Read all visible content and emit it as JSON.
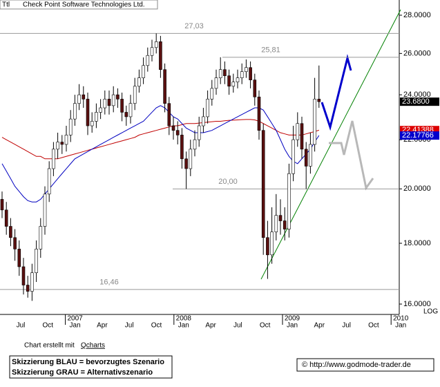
{
  "chart_data": {
    "type": "candlestick",
    "symbol": "Ttl",
    "title": "Check Point Software Technologies Ltd.",
    "log_scale": true,
    "scale_label": "LOG",
    "ylim": [
      16,
      28
    ],
    "yticks": [
      {
        "value": 16,
        "label": "16.0000"
      },
      {
        "value": 18,
        "label": "18.0000"
      },
      {
        "value": 20,
        "label": "20.0000"
      },
      {
        "value": 22,
        "label": "22.0000"
      },
      {
        "value": 24,
        "label": "24.0000"
      },
      {
        "value": 26,
        "label": "26.0000"
      },
      {
        "value": 28,
        "label": "28.0000"
      }
    ],
    "months": [
      "Jul",
      "Oct",
      "Jan",
      "Apr",
      "Jul",
      "Oct",
      "Jan",
      "Apr",
      "Jul",
      "Oct",
      "Jan",
      "Apr",
      "Jul",
      "Oct",
      "Jan"
    ],
    "years": [
      "2007",
      "2008",
      "2009",
      "2010"
    ],
    "up_color": "#ffffff",
    "down_color": "#5a1010",
    "ohlc": [
      [
        19.6,
        19.9,
        18.9,
        19.2
      ],
      [
        19.2,
        19.5,
        18.3,
        18.6
      ],
      [
        18.6,
        18.9,
        17.9,
        18.2
      ],
      [
        18.2,
        18.5,
        17.4,
        17.8
      ],
      [
        17.8,
        18.1,
        16.9,
        17.2
      ],
      [
        17.2,
        17.5,
        16.3,
        16.6
      ],
      [
        16.6,
        16.9,
        16.2,
        16.4
      ],
      [
        16.4,
        17.3,
        16.1,
        17.0
      ],
      [
        17.0,
        18.1,
        16.7,
        17.8
      ],
      [
        17.8,
        18.9,
        17.5,
        18.6
      ],
      [
        18.6,
        20.1,
        18.3,
        19.8
      ],
      [
        19.8,
        21.1,
        19.5,
        20.8
      ],
      [
        20.8,
        21.9,
        20.5,
        21.6
      ],
      [
        21.6,
        22.3,
        21.2,
        21.9
      ],
      [
        21.9,
        22.2,
        21.4,
        21.8
      ],
      [
        21.8,
        22.6,
        21.5,
        22.2
      ],
      [
        22.2,
        23.3,
        21.9,
        22.9
      ],
      [
        22.9,
        24.0,
        22.6,
        23.6
      ],
      [
        23.6,
        24.5,
        23.3,
        24.0
      ],
      [
        24.0,
        24.4,
        23.4,
        23.8
      ],
      [
        23.8,
        24.1,
        22.2,
        22.6
      ],
      [
        22.6,
        23.2,
        22.3,
        22.8
      ],
      [
        22.8,
        23.6,
        22.5,
        23.2
      ],
      [
        23.2,
        23.8,
        22.9,
        23.4
      ],
      [
        23.4,
        24.2,
        23.1,
        23.8
      ],
      [
        23.8,
        24.2,
        23.1,
        23.5
      ],
      [
        23.5,
        24.4,
        23.2,
        24.0
      ],
      [
        24.0,
        24.3,
        23.4,
        23.8
      ],
      [
        23.8,
        24.1,
        22.8,
        23.2
      ],
      [
        23.2,
        23.5,
        22.6,
        23.0
      ],
      [
        23.0,
        24.0,
        22.7,
        23.6
      ],
      [
        23.6,
        24.8,
        23.3,
        24.4
      ],
      [
        24.4,
        25.2,
        24.1,
        24.8
      ],
      [
        24.8,
        25.8,
        24.5,
        25.4
      ],
      [
        25.4,
        26.3,
        25.1,
        25.9
      ],
      [
        25.9,
        26.7,
        25.6,
        26.3
      ],
      [
        26.3,
        27.03,
        26.0,
        26.6
      ],
      [
        26.6,
        26.9,
        24.8,
        25.2
      ],
      [
        25.2,
        25.5,
        23.2,
        23.6
      ],
      [
        23.6,
        23.9,
        22.2,
        22.6
      ],
      [
        22.6,
        23.0,
        22.0,
        22.4
      ],
      [
        22.4,
        22.8,
        21.8,
        22.2
      ],
      [
        22.2,
        22.5,
        20.8,
        21.2
      ],
      [
        21.2,
        21.5,
        20.0,
        20.8
      ],
      [
        20.8,
        22.0,
        20.5,
        21.6
      ],
      [
        21.6,
        22.4,
        21.3,
        22.0
      ],
      [
        22.0,
        23.0,
        21.7,
        22.6
      ],
      [
        22.6,
        23.4,
        22.3,
        23.0
      ],
      [
        23.0,
        24.2,
        22.7,
        23.8
      ],
      [
        23.8,
        24.7,
        23.5,
        24.3
      ],
      [
        24.3,
        25.2,
        24.0,
        24.8
      ],
      [
        24.8,
        25.81,
        24.5,
        25.2
      ],
      [
        25.2,
        25.6,
        24.5,
        24.9
      ],
      [
        24.9,
        25.2,
        24.0,
        24.4
      ],
      [
        24.4,
        25.0,
        24.1,
        24.6
      ],
      [
        24.6,
        25.2,
        24.3,
        24.8
      ],
      [
        24.8,
        25.5,
        24.5,
        25.1
      ],
      [
        25.1,
        25.7,
        24.8,
        25.3
      ],
      [
        25.3,
        25.6,
        24.3,
        24.7
      ],
      [
        24.7,
        25.0,
        23.5,
        23.9
      ],
      [
        23.9,
        24.2,
        22.0,
        22.4
      ],
      [
        22.4,
        22.7,
        17.6,
        18.2
      ],
      [
        18.2,
        18.8,
        16.8,
        17.6
      ],
      [
        17.6,
        19.3,
        17.3,
        18.4
      ],
      [
        18.4,
        19.8,
        18.1,
        19.0
      ],
      [
        19.0,
        19.6,
        18.3,
        18.8
      ],
      [
        18.8,
        19.3,
        18.1,
        18.5
      ],
      [
        18.5,
        21.0,
        18.2,
        20.6
      ],
      [
        20.6,
        22.6,
        20.3,
        22.0
      ],
      [
        22.0,
        23.2,
        21.7,
        22.7
      ],
      [
        22.7,
        23.0,
        21.2,
        21.6
      ],
      [
        21.6,
        21.9,
        20.0,
        20.9
      ],
      [
        20.9,
        22.3,
        20.6,
        21.8
      ],
      [
        21.8,
        24.8,
        21.5,
        23.8
      ],
      [
        23.8,
        25.4,
        23.4,
        23.68
      ]
    ],
    "moving_averages": [
      {
        "color": "#c00000",
        "values": [
          22.1,
          22.0,
          21.9,
          21.8,
          21.7,
          21.6,
          21.5,
          21.4,
          21.3,
          21.3,
          21.2,
          21.2,
          21.2,
          21.2,
          21.25,
          21.3,
          21.35,
          21.4,
          21.45,
          21.5,
          21.55,
          21.6,
          21.65,
          21.7,
          21.75,
          21.8,
          21.85,
          21.9,
          21.95,
          22.0,
          22.05,
          22.1,
          22.2,
          22.25,
          22.3,
          22.35,
          22.4,
          22.45,
          22.5,
          22.55,
          22.6,
          22.6,
          22.65,
          22.7,
          22.7,
          22.7,
          22.72,
          22.74,
          22.76,
          22.78,
          22.8,
          22.8,
          22.82,
          22.84,
          22.85,
          22.86,
          22.87,
          22.88,
          22.88,
          22.86,
          22.8,
          22.7,
          22.6,
          22.5,
          22.4,
          22.3,
          22.25,
          22.2,
          22.2,
          22.2,
          22.2,
          22.25,
          22.3,
          22.35,
          22.41
        ]
      },
      {
        "color": "#0000c0",
        "values": [
          21.0,
          20.7,
          20.4,
          20.1,
          19.9,
          19.7,
          19.55,
          19.5,
          19.5,
          19.6,
          19.8,
          20.0,
          20.2,
          20.4,
          20.6,
          20.8,
          21.0,
          21.2,
          21.3,
          21.4,
          21.5,
          21.6,
          21.7,
          21.8,
          21.9,
          22.0,
          22.1,
          22.2,
          22.3,
          22.4,
          22.5,
          22.6,
          22.7,
          22.8,
          23.0,
          23.2,
          23.4,
          23.5,
          23.4,
          23.2,
          23.0,
          22.9,
          22.7,
          22.5,
          22.4,
          22.3,
          22.3,
          22.3,
          22.35,
          22.4,
          22.5,
          22.6,
          22.7,
          22.8,
          22.9,
          23.0,
          23.1,
          23.2,
          23.3,
          23.4,
          23.4,
          23.3,
          23.0,
          22.7,
          22.4,
          22.0,
          21.6,
          21.3,
          21.1,
          21.0,
          21.2,
          21.4,
          21.6,
          21.9,
          22.18
        ]
      }
    ],
    "levels": [
      {
        "value": 27.03,
        "label": "27,03"
      },
      {
        "value": 25.81,
        "label": "25,81"
      },
      {
        "value": 20.0,
        "label": "20,00"
      },
      {
        "value": 16.46,
        "label": "16,46"
      }
    ],
    "price_labels": [
      {
        "value": 23.68,
        "label": "23.6800",
        "color": "#000000"
      },
      {
        "value": 22.41388,
        "label": "22.41388",
        "color": "#dd0000"
      },
      {
        "value": 22.17766,
        "label": "22.17766",
        "color": "#0000cc"
      }
    ]
  },
  "footer": {
    "credit": "Chart erstellt mit",
    "credit_link": "Qcharts",
    "legend": [
      "Skizzierung BLAU = bevorzugtes Szenario",
      "Skizzierung GRAU = Alternativszenario"
    ],
    "copyright": "© http://www.godmode-trader.de"
  }
}
